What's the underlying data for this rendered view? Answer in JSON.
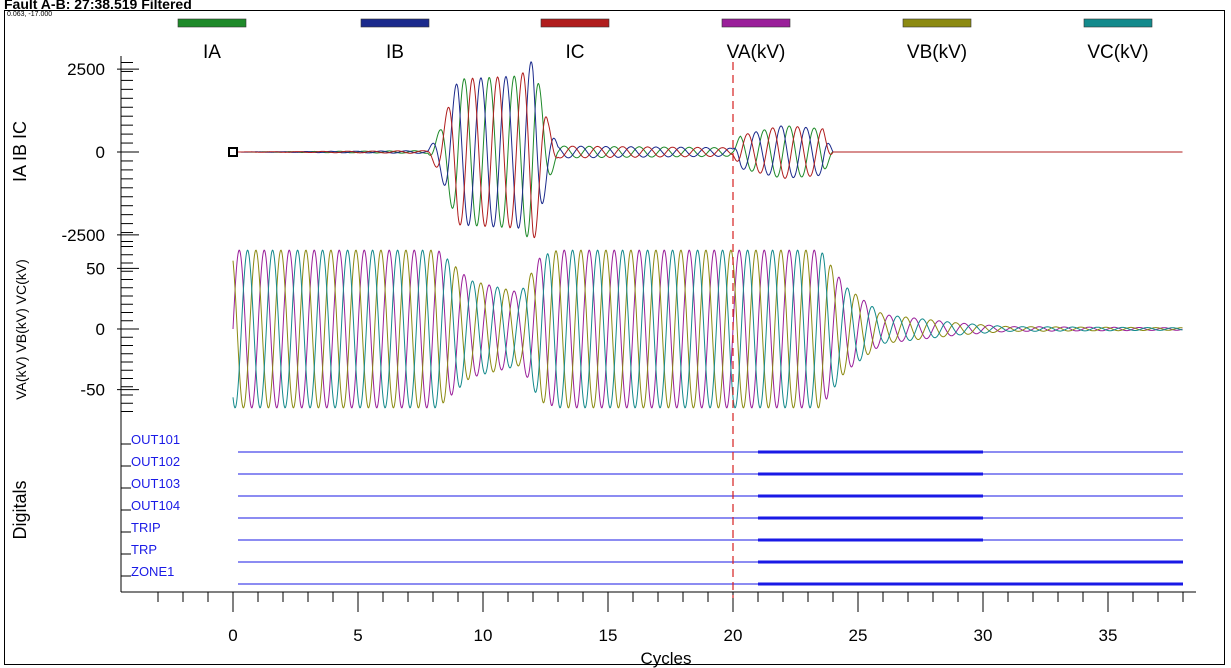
{
  "window": {
    "title": "Fault A-B: 27:38.519 Filtered",
    "cursor_readout": "0.063, -17.000"
  },
  "chart_data": {
    "type": "line",
    "xlabel": "Cycles",
    "xlim": [
      -3,
      38
    ],
    "x_ticks": [
      0,
      5,
      10,
      15,
      20,
      25,
      30,
      35
    ],
    "cursor_x": 20,
    "legend": {
      "placement": "top",
      "entries": [
        {
          "name": "IA",
          "color": "#1f8a2a"
        },
        {
          "name": "IB",
          "color": "#1b2a8c"
        },
        {
          "name": "IC",
          "color": "#b01d1d"
        },
        {
          "name": "VA(kV)",
          "color": "#9a1f9a"
        },
        {
          "name": "VB(kV)",
          "color": "#8c8a12"
        },
        {
          "name": "VC(kV)",
          "color": "#138a8c"
        }
      ]
    },
    "panels": [
      {
        "ylabel": "IA IB IC",
        "ylim": [
          -2700,
          2700
        ],
        "y_ticks": [
          2500,
          0,
          -2500
        ],
        "series": [
          {
            "name": "IA",
            "color": "#1f8a2a",
            "phase": 0
          },
          {
            "name": "IB",
            "color": "#1b2a8c",
            "phase": 2.094
          },
          {
            "name": "IC",
            "color": "#b01d1d",
            "phase": 4.189
          }
        ],
        "envelope": [
          {
            "x": 0,
            "a": 0
          },
          {
            "x": 7.8,
            "a": 40
          },
          {
            "x": 8.3,
            "a": 700
          },
          {
            "x": 9.0,
            "a": 2200
          },
          {
            "x": 11.5,
            "a": 2300
          },
          {
            "x": 12.0,
            "a": 2800
          },
          {
            "x": 12.6,
            "a": 900
          },
          {
            "x": 13.0,
            "a": 180
          },
          {
            "x": 19.8,
            "a": 130
          },
          {
            "x": 20.0,
            "a": 100
          },
          {
            "x": 20.3,
            "a": 500
          },
          {
            "x": 22.0,
            "a": 800
          },
          {
            "x": 23.6,
            "a": 700
          },
          {
            "x": 24.0,
            "a": 0
          },
          {
            "x": 38,
            "a": 0
          }
        ]
      },
      {
        "ylabel": "VA(kV) VB(kV) VC(kV)",
        "ylim": [
          -68,
          68
        ],
        "y_ticks": [
          50,
          0,
          -50
        ],
        "series": [
          {
            "name": "VA(kV)",
            "color": "#9a1f9a",
            "phase": 0
          },
          {
            "name": "VB(kV)",
            "color": "#8c8a12",
            "phase": 2.094
          },
          {
            "name": "VC(kV)",
            "color": "#138a8c",
            "phase": 4.189
          }
        ],
        "envelope": [
          {
            "x": 0,
            "a": 65
          },
          {
            "x": 8.2,
            "a": 65
          },
          {
            "x": 9.5,
            "a": 40
          },
          {
            "x": 11.5,
            "a": 30
          },
          {
            "x": 12.3,
            "a": 60
          },
          {
            "x": 13.0,
            "a": 65
          },
          {
            "x": 23.5,
            "a": 65
          },
          {
            "x": 24.5,
            "a": 35
          },
          {
            "x": 26,
            "a": 12
          },
          {
            "x": 29,
            "a": 5
          },
          {
            "x": 31,
            "a": 2
          },
          {
            "x": 38,
            "a": 1
          }
        ]
      }
    ],
    "digitals": {
      "ylabel": "Digitals",
      "channels": [
        {
          "name": "OUT101",
          "high": [
            [
              21,
              30
            ]
          ]
        },
        {
          "name": "OUT102",
          "high": [
            [
              21,
              30
            ]
          ]
        },
        {
          "name": "OUT103",
          "high": [
            [
              21,
              30
            ]
          ]
        },
        {
          "name": "OUT104",
          "high": [
            [
              21,
              30
            ]
          ]
        },
        {
          "name": "TRIP",
          "high": [
            [
              21,
              30
            ]
          ]
        },
        {
          "name": "TRP",
          "high": [
            [
              21,
              38
            ]
          ]
        },
        {
          "name": "ZONE1",
          "high": [
            [
              21,
              38
            ]
          ]
        }
      ]
    }
  }
}
